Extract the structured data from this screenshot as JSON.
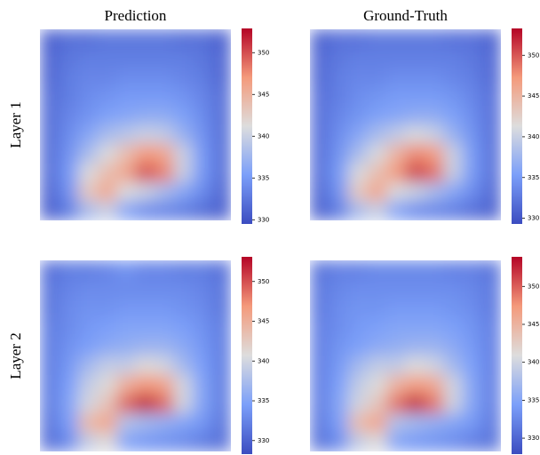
{
  "chart_data": [
    {
      "type": "heatmap",
      "title": "Prediction",
      "ylabel": "Layer 1",
      "colormap": "coolwarm",
      "zlim": [
        329.5,
        352.9
      ],
      "zticks": [
        330,
        335,
        340,
        345,
        350
      ],
      "z": [
        [
          331,
          332,
          332,
          332.5,
          332.5,
          332.5,
          332.5,
          332,
          332,
          331
        ],
        [
          331.5,
          332.5,
          333,
          333,
          333,
          333,
          333,
          333,
          332.5,
          331.5
        ],
        [
          331.5,
          333,
          333.5,
          333.5,
          334,
          334,
          334,
          333.5,
          333,
          331.5
        ],
        [
          332,
          333,
          334,
          334.5,
          335,
          335,
          335,
          334.5,
          333.5,
          332
        ],
        [
          332,
          333.5,
          334.5,
          335.5,
          336,
          336.5,
          336.5,
          335.5,
          334,
          332
        ],
        [
          332,
          334,
          336,
          338,
          339,
          340,
          339.5,
          337,
          334.5,
          332
        ],
        [
          332,
          334.5,
          338,
          341,
          344,
          347,
          346,
          340,
          335,
          332
        ],
        [
          332,
          335,
          341,
          344,
          346,
          350,
          348,
          340,
          335,
          332
        ],
        [
          331.5,
          334.5,
          343,
          346,
          341,
          340,
          338,
          336,
          334,
          331.5
        ],
        [
          331,
          333,
          338,
          340,
          336,
          334,
          333.5,
          333,
          332,
          331
        ]
      ]
    },
    {
      "type": "heatmap",
      "title": "Ground-Truth",
      "colormap": "coolwarm",
      "zlim": [
        329.3,
        353.3
      ],
      "zticks": [
        330,
        335,
        340,
        345,
        350
      ],
      "z": [
        [
          331,
          332,
          332,
          332.5,
          332.5,
          332.5,
          332.5,
          332,
          332,
          331
        ],
        [
          331.5,
          332.5,
          333,
          333,
          333,
          333,
          333,
          333,
          332.5,
          331.5
        ],
        [
          331.5,
          333,
          333.5,
          333.5,
          334,
          334,
          334,
          333.5,
          333,
          331.5
        ],
        [
          332,
          333,
          334,
          334.5,
          335,
          335,
          335,
          334.5,
          333.5,
          332
        ],
        [
          332,
          333.5,
          334.5,
          335.5,
          336,
          336.5,
          336.5,
          335.5,
          334,
          332
        ],
        [
          332,
          334,
          336,
          338,
          339.5,
          341,
          340,
          337,
          334.5,
          332
        ],
        [
          332,
          334.5,
          338,
          341,
          345,
          348,
          347,
          340,
          335,
          332
        ],
        [
          332,
          335,
          341,
          344,
          347,
          351,
          349,
          340,
          335,
          332
        ],
        [
          331.5,
          334.5,
          343,
          346.5,
          341,
          340,
          338,
          336,
          334,
          331.5
        ],
        [
          331,
          333,
          338,
          340,
          336,
          334,
          333.5,
          333,
          332,
          331
        ]
      ]
    },
    {
      "type": "heatmap",
      "ylabel": "Layer 2",
      "colormap": "coolwarm",
      "zlim": [
        328.3,
        353.1
      ],
      "zticks": [
        330,
        335,
        340,
        345,
        350
      ],
      "z": [
        [
          331,
          332,
          332,
          332.5,
          333.5,
          332.5,
          332.5,
          332,
          332,
          331
        ],
        [
          331.5,
          332.5,
          333,
          333,
          333,
          333,
          333,
          333,
          332.5,
          331.5
        ],
        [
          331.5,
          333,
          333.5,
          333.5,
          334,
          334,
          334,
          333.5,
          333,
          331.5
        ],
        [
          332,
          333,
          334,
          334.5,
          335,
          335,
          335,
          334.5,
          333.5,
          332
        ],
        [
          332,
          333.5,
          334.5,
          335.5,
          336,
          336.5,
          336.5,
          335.5,
          334,
          332
        ],
        [
          332,
          334,
          337,
          339,
          339,
          341,
          340,
          337,
          334.5,
          332
        ],
        [
          332,
          334.5,
          339,
          341,
          345,
          347,
          346,
          340,
          335,
          332
        ],
        [
          332,
          335,
          340,
          343,
          349,
          352,
          349,
          340,
          335,
          332
        ],
        [
          331.5,
          334.5,
          344,
          346,
          338,
          337,
          336,
          335,
          334,
          331.5
        ],
        [
          331,
          333,
          339,
          341,
          335,
          334,
          333.5,
          333,
          332,
          331
        ]
      ]
    },
    {
      "type": "heatmap",
      "colormap": "coolwarm",
      "zlim": [
        327.9,
        353.9
      ],
      "zticks": [
        330,
        335,
        340,
        345,
        350
      ],
      "z": [
        [
          331,
          332,
          332,
          332.5,
          332.5,
          332.5,
          332.5,
          332,
          332,
          331
        ],
        [
          331.5,
          332.5,
          333,
          333,
          333,
          333,
          333,
          333,
          332.5,
          331.5
        ],
        [
          331.5,
          333,
          333.5,
          333.5,
          334,
          334,
          334,
          333.5,
          333,
          331.5
        ],
        [
          332,
          333,
          334,
          334.5,
          335,
          335,
          335,
          334.5,
          333.5,
          332
        ],
        [
          332,
          333.5,
          334.5,
          335.5,
          336,
          336.5,
          336.5,
          335.5,
          334,
          332
        ],
        [
          332,
          334,
          337,
          339,
          339,
          341,
          340,
          337,
          334.5,
          332
        ],
        [
          332,
          334.5,
          339,
          341,
          345,
          347,
          346,
          340,
          335,
          332
        ],
        [
          332,
          335,
          340,
          343,
          349,
          352.5,
          349,
          340,
          335,
          332
        ],
        [
          331.5,
          334.5,
          344,
          346.5,
          338,
          337,
          336,
          335,
          334,
          331.5
        ],
        [
          331,
          333,
          339,
          341,
          335,
          334,
          333.5,
          333,
          332,
          331
        ]
      ]
    }
  ]
}
